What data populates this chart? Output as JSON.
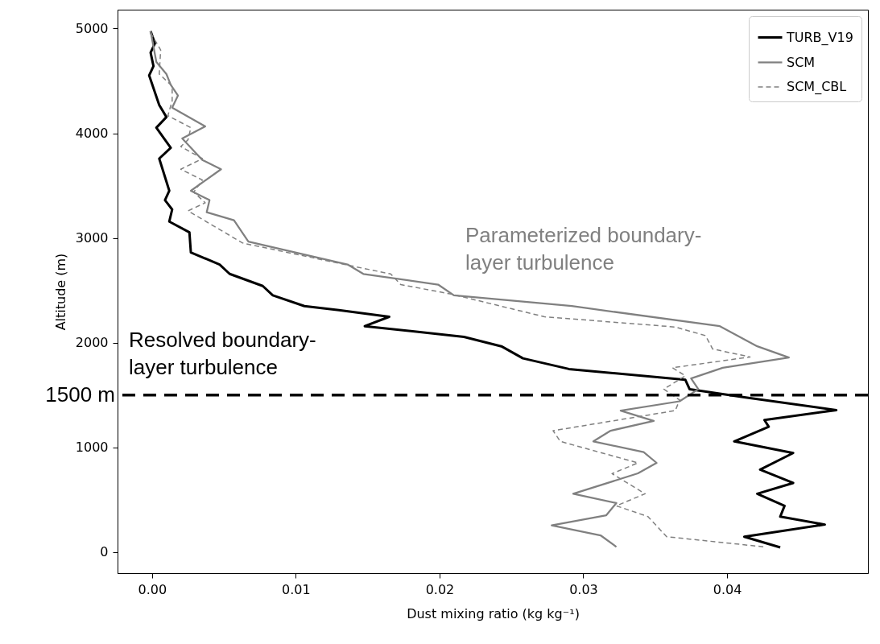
{
  "chart_data": {
    "type": "line",
    "xlabel": "Dust mixing ratio (kg kg⁻¹)",
    "ylabel": "Altitude (m)",
    "xlim": [
      -0.0024,
      0.0498
    ],
    "ylim": [
      -200,
      5180
    ],
    "xticks": [
      {
        "value": 0,
        "label": "0.00"
      },
      {
        "value": 0.01,
        "label": "0.01"
      },
      {
        "value": 0.02,
        "label": "0.02"
      },
      {
        "value": 0.03,
        "label": "0.03"
      },
      {
        "value": 0.04,
        "label": "0.04"
      }
    ],
    "yticks": [
      0,
      1000,
      2000,
      3000,
      4000,
      5000
    ],
    "grid": false,
    "legend": "top right",
    "marker": "none",
    "annotations": [
      "Resolved boundary-\nlayer turbulence",
      "Parameterized boundary-\nlayer turbulence"
    ],
    "ref_lines": [
      {
        "axis": "y",
        "value": 1500,
        "label": "1500 m",
        "color": "#000000",
        "line_style": "dashed"
      }
    ],
    "series": [
      {
        "name": "TURB_V19",
        "color": "#000000",
        "line_style": "solid",
        "x": [
          -0.0001,
          0.0002,
          -0.0001,
          0.0001,
          -0.0002,
          0.0005,
          0.001,
          0.0003,
          0.0013,
          0.0005,
          0.0012,
          0.0009,
          0.0014,
          0.0012,
          0.0026,
          0.0027,
          0.0047,
          0.0054,
          0.0077,
          0.0084,
          0.0106,
          0.013,
          0.0165,
          0.0148,
          0.0217,
          0.0243,
          0.0258,
          0.029,
          0.0371,
          0.0374,
          0.0412,
          0.0476,
          0.0426,
          0.0429,
          0.0405,
          0.0446,
          0.0423,
          0.0446,
          0.0421,
          0.044,
          0.0437,
          0.0468,
          0.0412,
          0.0437
        ],
        "values": [
          4975,
          4858,
          4770,
          4641,
          4552,
          4270,
          4155,
          4053,
          3861,
          3758,
          3451,
          3362,
          3272,
          3157,
          3054,
          2862,
          2747,
          2657,
          2542,
          2452,
          2350,
          2312,
          2248,
          2158,
          2056,
          1966,
          1851,
          1749,
          1646,
          1556,
          1480,
          1357,
          1262,
          1198,
          1058,
          947,
          789,
          661,
          558,
          443,
          340,
          264,
          148,
          46
        ]
      },
      {
        "name": "SCM",
        "color": "#808080",
        "line_style": "solid",
        "x": [
          -0.0001,
          0.0003,
          0.001,
          0.0013,
          0.0018,
          0.0014,
          0.0037,
          0.0021,
          0.0035,
          0.0048,
          0.0027,
          0.004,
          0.0038,
          0.0057,
          0.0067,
          0.0136,
          0.0147,
          0.0199,
          0.021,
          0.0292,
          0.0395,
          0.0421,
          0.0443,
          0.0397,
          0.0375,
          0.038,
          0.0367,
          0.0326,
          0.0349,
          0.0319,
          0.0307,
          0.0342,
          0.0351,
          0.0338,
          0.0293,
          0.0323,
          0.0316,
          0.0278,
          0.0312,
          0.0323
        ],
        "values": [
          4975,
          4680,
          4565,
          4462,
          4360,
          4245,
          4066,
          3950,
          3745,
          3656,
          3451,
          3362,
          3246,
          3169,
          2965,
          2747,
          2657,
          2555,
          2452,
          2350,
          2158,
          1966,
          1859,
          1761,
          1659,
          1557,
          1441,
          1352,
          1254,
          1160,
          1058,
          955,
          853,
          753,
          558,
          469,
          353,
          256,
          161,
          51
        ]
      },
      {
        "name": "SCM_CBL",
        "color": "#808080",
        "line_style": "dashed",
        "x": [
          -0.0001,
          0.0006,
          0.0005,
          0.0014,
          0.0014,
          0.0011,
          0.0027,
          0.0025,
          0.002,
          0.0035,
          0.002,
          0.0035,
          0.0029,
          0.0037,
          0.0025,
          0.0063,
          0.0134,
          0.0166,
          0.0173,
          0.0208,
          0.0273,
          0.0364,
          0.0385,
          0.039,
          0.0416,
          0.0362,
          0.0371,
          0.0356,
          0.0367,
          0.0364,
          0.0279,
          0.0284,
          0.0338,
          0.032,
          0.0343,
          0.0323,
          0.0345,
          0.0358,
          0.0426
        ],
        "values": [
          4960,
          4795,
          4565,
          4450,
          4309,
          4168,
          4053,
          3938,
          3873,
          3758,
          3656,
          3554,
          3438,
          3336,
          3259,
          2952,
          2747,
          2657,
          2555,
          2465,
          2248,
          2150,
          2068,
          1940,
          1864,
          1761,
          1684,
          1557,
          1454,
          1352,
          1160,
          1058,
          853,
          750,
          558,
          443,
          340,
          148,
          51
        ]
      }
    ]
  }
}
